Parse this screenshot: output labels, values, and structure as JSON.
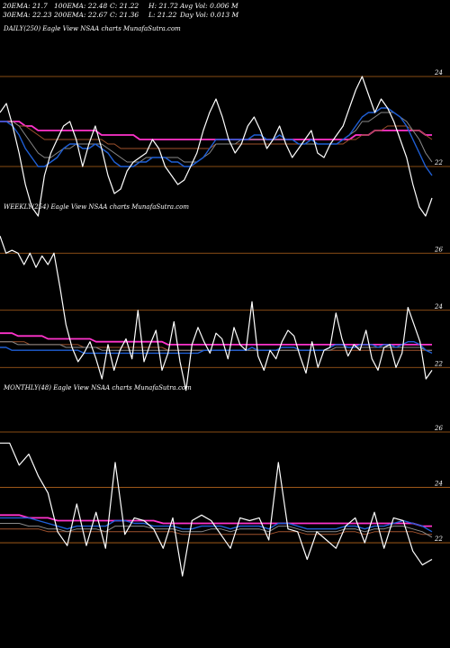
{
  "header": {
    "row1": [
      "20EMA: 21.7",
      "100EMA: 22.48",
      "C: 21.22",
      "H: 21.72",
      "Avg Vol: 0.006  M"
    ],
    "row2": [
      "30EMA: 22.23",
      "200EMA: 22.67",
      "C: 21.36",
      "L: 21.22",
      "Day Vol: 0.013 M"
    ]
  },
  "colors": {
    "background": "#000000",
    "grid": "#b5651d",
    "price": "#ffffff",
    "ema20": "#1f5fd6",
    "ema30": "#8a8a8a",
    "ema100": "#a0522d",
    "ema200": "#ff33cc"
  },
  "chart_data": [
    {
      "type": "line",
      "label": "DAILY(250) Eagle  View  NSAA charts MunafaSutra.com",
      "ylim": [
        20.9,
        24.9
      ],
      "gridlines": [
        24,
        22
      ],
      "tick_labels": [
        "24",
        "22"
      ],
      "series": [
        {
          "key": "price",
          "values": [
            23.2,
            23.4,
            22.9,
            22.3,
            21.6,
            21.1,
            20.9,
            21.8,
            22.3,
            22.6,
            22.9,
            23.0,
            22.6,
            22.0,
            22.5,
            22.9,
            22.4,
            21.8,
            21.4,
            21.5,
            21.9,
            22.1,
            22.2,
            22.3,
            22.6,
            22.4,
            22.0,
            21.8,
            21.6,
            21.7,
            22.0,
            22.3,
            22.8,
            23.2,
            23.5,
            23.1,
            22.6,
            22.3,
            22.5,
            22.9,
            23.1,
            22.8,
            22.4,
            22.6,
            22.9,
            22.5,
            22.2,
            22.4,
            22.6,
            22.8,
            22.3,
            22.2,
            22.5,
            22.7,
            22.9,
            23.3,
            23.7,
            24.0,
            23.6,
            23.2,
            23.5,
            23.3,
            23.0,
            22.6,
            22.2,
            21.6,
            21.1,
            20.9,
            21.3
          ]
        },
        {
          "key": "ema20",
          "values": [
            23.0,
            23.0,
            22.9,
            22.7,
            22.4,
            22.2,
            22.0,
            22.0,
            22.1,
            22.2,
            22.4,
            22.5,
            22.5,
            22.4,
            22.4,
            22.5,
            22.4,
            22.3,
            22.1,
            22.0,
            22.0,
            22.0,
            22.1,
            22.1,
            22.2,
            22.2,
            22.2,
            22.1,
            22.1,
            22.0,
            22.0,
            22.1,
            22.2,
            22.4,
            22.6,
            22.6,
            22.6,
            22.6,
            22.6,
            22.6,
            22.7,
            22.7,
            22.6,
            22.6,
            22.7,
            22.6,
            22.6,
            22.5,
            22.5,
            22.6,
            22.5,
            22.5,
            22.5,
            22.5,
            22.6,
            22.7,
            22.9,
            23.1,
            23.2,
            23.2,
            23.3,
            23.3,
            23.2,
            23.1,
            22.9,
            22.6,
            22.3,
            22.0,
            21.8
          ]
        },
        {
          "key": "ema30",
          "values": [
            23.0,
            23.0,
            23.0,
            22.9,
            22.7,
            22.5,
            22.3,
            22.2,
            22.2,
            22.3,
            22.4,
            22.4,
            22.5,
            22.5,
            22.5,
            22.5,
            22.5,
            22.4,
            22.3,
            22.2,
            22.1,
            22.1,
            22.1,
            22.2,
            22.2,
            22.2,
            22.2,
            22.2,
            22.2,
            22.1,
            22.1,
            22.1,
            22.2,
            22.3,
            22.5,
            22.5,
            22.5,
            22.5,
            22.6,
            22.6,
            22.6,
            22.6,
            22.6,
            22.6,
            22.6,
            22.6,
            22.6,
            22.5,
            22.5,
            22.5,
            22.5,
            22.5,
            22.5,
            22.5,
            22.6,
            22.7,
            22.8,
            23.0,
            23.0,
            23.1,
            23.2,
            23.2,
            23.2,
            23.1,
            23.0,
            22.8,
            22.6,
            22.3,
            22.1
          ]
        },
        {
          "key": "ema100",
          "values": [
            23.0,
            23.0,
            23.0,
            22.9,
            22.9,
            22.8,
            22.7,
            22.6,
            22.6,
            22.6,
            22.6,
            22.6,
            22.6,
            22.6,
            22.6,
            22.6,
            22.6,
            22.5,
            22.5,
            22.4,
            22.4,
            22.4,
            22.4,
            22.4,
            22.4,
            22.4,
            22.4,
            22.4,
            22.4,
            22.4,
            22.4,
            22.4,
            22.4,
            22.4,
            22.5,
            22.5,
            22.5,
            22.5,
            22.5,
            22.5,
            22.5,
            22.5,
            22.5,
            22.5,
            22.5,
            22.5,
            22.5,
            22.5,
            22.5,
            22.5,
            22.5,
            22.5,
            22.5,
            22.5,
            22.5,
            22.6,
            22.6,
            22.7,
            22.7,
            22.8,
            22.8,
            22.9,
            22.9,
            22.9,
            22.9,
            22.8,
            22.8,
            22.7,
            22.6
          ]
        },
        {
          "key": "ema200",
          "values": [
            23.0,
            23.0,
            23.0,
            23.0,
            22.9,
            22.9,
            22.8,
            22.8,
            22.8,
            22.8,
            22.8,
            22.8,
            22.8,
            22.8,
            22.8,
            22.8,
            22.7,
            22.7,
            22.7,
            22.7,
            22.7,
            22.7,
            22.6,
            22.6,
            22.6,
            22.6,
            22.6,
            22.6,
            22.6,
            22.6,
            22.6,
            22.6,
            22.6,
            22.6,
            22.6,
            22.6,
            22.6,
            22.6,
            22.6,
            22.6,
            22.6,
            22.6,
            22.6,
            22.6,
            22.6,
            22.6,
            22.6,
            22.6,
            22.6,
            22.6,
            22.6,
            22.6,
            22.6,
            22.6,
            22.6,
            22.6,
            22.7,
            22.7,
            22.7,
            22.8,
            22.8,
            22.8,
            22.8,
            22.8,
            22.8,
            22.8,
            22.8,
            22.7,
            22.7
          ]
        }
      ]
    },
    {
      "type": "line",
      "label": "WEEKLY(254) Eagle  View  NSAA charts MunafaSutra.com",
      "ylim": [
        21.0,
        27.3
      ],
      "gridlines": [
        26,
        24,
        22
      ],
      "tick_labels": [
        "26",
        "24",
        "22"
      ],
      "series": [
        {
          "key": "price",
          "values": [
            26.6,
            26.0,
            26.1,
            26.0,
            25.6,
            26.0,
            25.5,
            25.9,
            25.6,
            26.0,
            24.8,
            23.5,
            22.7,
            22.2,
            22.5,
            22.9,
            22.3,
            21.6,
            22.8,
            21.9,
            22.6,
            23.0,
            22.3,
            24.0,
            22.2,
            22.8,
            23.3,
            21.9,
            22.5,
            23.6,
            22.2,
            21.2,
            22.8,
            23.4,
            22.9,
            22.5,
            23.2,
            23.0,
            22.3,
            23.4,
            22.8,
            22.6,
            24.3,
            22.4,
            21.9,
            22.6,
            22.3,
            22.9,
            23.3,
            23.1,
            22.4,
            21.8,
            22.9,
            22.0,
            22.6,
            22.7,
            23.9,
            23.0,
            22.4,
            22.8,
            22.6,
            23.3,
            22.3,
            21.9,
            22.7,
            22.8,
            22.0,
            22.5,
            24.1,
            23.5,
            22.9,
            21.6,
            21.9
          ]
        },
        {
          "key": "ema20",
          "values": [
            22.7,
            22.7,
            22.6,
            22.6,
            22.6,
            22.6,
            22.6,
            22.6,
            22.6,
            22.6,
            22.6,
            22.6,
            22.6,
            22.6,
            22.5,
            22.5,
            22.5,
            22.5,
            22.5,
            22.5,
            22.5,
            22.5,
            22.5,
            22.5,
            22.5,
            22.5,
            22.5,
            22.5,
            22.5,
            22.5,
            22.5,
            22.5,
            22.5,
            22.5,
            22.6,
            22.6,
            22.6,
            22.6,
            22.6,
            22.6,
            22.6,
            22.6,
            22.7,
            22.6,
            22.6,
            22.6,
            22.6,
            22.7,
            22.7,
            22.7,
            22.6,
            22.6,
            22.6,
            22.6,
            22.6,
            22.7,
            22.8,
            22.8,
            22.7,
            22.7,
            22.8,
            22.8,
            22.8,
            22.7,
            22.8,
            22.8,
            22.7,
            22.8,
            22.9,
            22.9,
            22.8,
            22.6,
            22.5
          ]
        },
        {
          "key": "ema30",
          "values": [
            22.9,
            22.9,
            22.9,
            22.8,
            22.8,
            22.8,
            22.8,
            22.8,
            22.8,
            22.8,
            22.8,
            22.7,
            22.7,
            22.7,
            22.7,
            22.7,
            22.7,
            22.6,
            22.6,
            22.6,
            22.6,
            22.6,
            22.6,
            22.6,
            22.6,
            22.6,
            22.6,
            22.6,
            22.6,
            22.6,
            22.6,
            22.6,
            22.6,
            22.6,
            22.6,
            22.6,
            22.6,
            22.6,
            22.6,
            22.6,
            22.6,
            22.6,
            22.6,
            22.6,
            22.6,
            22.6,
            22.6,
            22.6,
            22.6,
            22.6,
            22.6,
            22.6,
            22.6,
            22.6,
            22.6,
            22.6,
            22.7,
            22.7,
            22.7,
            22.7,
            22.7,
            22.7,
            22.7,
            22.7,
            22.7,
            22.7,
            22.7,
            22.7,
            22.7,
            22.7,
            22.7,
            22.6,
            22.6
          ]
        },
        {
          "key": "ema100",
          "values": [
            22.9,
            22.9,
            22.9,
            22.9,
            22.9,
            22.8,
            22.8,
            22.8,
            22.8,
            22.8,
            22.8,
            22.8,
            22.8,
            22.8,
            22.7,
            22.7,
            22.7,
            22.7,
            22.7,
            22.7,
            22.7,
            22.7,
            22.7,
            22.7,
            22.7,
            22.7,
            22.7,
            22.7,
            22.6,
            22.6,
            22.6,
            22.6,
            22.6,
            22.6,
            22.6,
            22.6,
            22.6,
            22.6,
            22.6,
            22.6,
            22.6,
            22.6,
            22.6,
            22.6,
            22.6,
            22.6,
            22.6,
            22.6,
            22.6,
            22.6,
            22.6,
            22.6,
            22.6,
            22.6,
            22.6,
            22.6,
            22.6,
            22.6,
            22.6,
            22.6,
            22.6,
            22.6,
            22.6,
            22.6,
            22.6,
            22.6,
            22.6,
            22.6,
            22.6,
            22.6,
            22.6,
            22.6,
            22.6
          ]
        },
        {
          "key": "ema200",
          "values": [
            23.2,
            23.2,
            23.2,
            23.1,
            23.1,
            23.1,
            23.1,
            23.1,
            23.0,
            23.0,
            23.0,
            23.0,
            23.0,
            23.0,
            23.0,
            23.0,
            22.9,
            22.9,
            22.9,
            22.9,
            22.9,
            22.9,
            22.9,
            22.9,
            22.9,
            22.9,
            22.9,
            22.9,
            22.8,
            22.8,
            22.8,
            22.8,
            22.8,
            22.8,
            22.8,
            22.8,
            22.8,
            22.8,
            22.8,
            22.8,
            22.8,
            22.8,
            22.8,
            22.8,
            22.8,
            22.8,
            22.8,
            22.8,
            22.8,
            22.8,
            22.8,
            22.8,
            22.8,
            22.8,
            22.8,
            22.8,
            22.8,
            22.8,
            22.8,
            22.8,
            22.8,
            22.8,
            22.8,
            22.8,
            22.8,
            22.8,
            22.8,
            22.8,
            22.8,
            22.8,
            22.8,
            22.8,
            22.8
          ]
        }
      ]
    },
    {
      "type": "line",
      "label": "MONTHLY(48) Eagle  View  NSAA charts MunafaSutra.com",
      "ylim": [
        20.8,
        27.3
      ],
      "gridlines": [
        26,
        24,
        22
      ],
      "tick_labels": [
        "26",
        "24",
        "22"
      ],
      "series": [
        {
          "key": "price",
          "values": [
            25.6,
            25.6,
            24.8,
            25.2,
            24.4,
            23.8,
            22.4,
            21.9,
            23.4,
            21.9,
            23.1,
            21.8,
            24.9,
            22.3,
            22.9,
            22.8,
            22.5,
            21.8,
            22.9,
            20.8,
            22.8,
            23.0,
            22.8,
            22.3,
            21.8,
            22.9,
            22.8,
            22.9,
            22.1,
            24.9,
            22.5,
            22.4,
            21.4,
            22.4,
            22.1,
            21.8,
            22.6,
            22.9,
            22.0,
            23.1,
            21.8,
            22.9,
            22.8,
            21.7,
            21.2,
            21.4
          ]
        },
        {
          "key": "ema20",
          "values": [
            22.9,
            22.9,
            22.9,
            22.9,
            22.8,
            22.7,
            22.6,
            22.5,
            22.6,
            22.6,
            22.6,
            22.6,
            22.8,
            22.8,
            22.7,
            22.7,
            22.6,
            22.6,
            22.6,
            22.5,
            22.5,
            22.6,
            22.6,
            22.6,
            22.5,
            22.6,
            22.6,
            22.6,
            22.5,
            22.7,
            22.7,
            22.6,
            22.5,
            22.5,
            22.5,
            22.5,
            22.6,
            22.6,
            22.5,
            22.6,
            22.6,
            22.7,
            22.8,
            22.7,
            22.6,
            22.4
          ]
        },
        {
          "key": "ema30",
          "values": [
            22.7,
            22.7,
            22.7,
            22.6,
            22.6,
            22.5,
            22.5,
            22.4,
            22.5,
            22.5,
            22.5,
            22.4,
            22.6,
            22.6,
            22.6,
            22.6,
            22.5,
            22.5,
            22.5,
            22.4,
            22.4,
            22.4,
            22.5,
            22.5,
            22.4,
            22.5,
            22.5,
            22.5,
            22.4,
            22.6,
            22.6,
            22.5,
            22.4,
            22.4,
            22.4,
            22.4,
            22.5,
            22.5,
            22.4,
            22.5,
            22.5,
            22.6,
            22.6,
            22.5,
            22.4,
            22.2
          ]
        },
        {
          "key": "ema100",
          "values": [
            22.5,
            22.5,
            22.5,
            22.5,
            22.5,
            22.4,
            22.4,
            22.4,
            22.4,
            22.4,
            22.4,
            22.4,
            22.4,
            22.4,
            22.4,
            22.4,
            22.4,
            22.4,
            22.4,
            22.3,
            22.3,
            22.3,
            22.3,
            22.3,
            22.3,
            22.3,
            22.3,
            22.3,
            22.3,
            22.4,
            22.4,
            22.4,
            22.3,
            22.3,
            22.3,
            22.3,
            22.4,
            22.4,
            22.3,
            22.4,
            22.4,
            22.4,
            22.4,
            22.4,
            22.3,
            22.3
          ]
        },
        {
          "key": "ema200",
          "values": [
            23.0,
            23.0,
            23.0,
            22.9,
            22.9,
            22.9,
            22.8,
            22.8,
            22.8,
            22.8,
            22.8,
            22.8,
            22.8,
            22.8,
            22.8,
            22.8,
            22.8,
            22.7,
            22.7,
            22.7,
            22.7,
            22.7,
            22.7,
            22.7,
            22.7,
            22.7,
            22.7,
            22.7,
            22.7,
            22.7,
            22.7,
            22.7,
            22.7,
            22.7,
            22.7,
            22.7,
            22.7,
            22.7,
            22.7,
            22.7,
            22.7,
            22.7,
            22.7,
            22.7,
            22.6,
            22.6
          ]
        }
      ]
    }
  ]
}
